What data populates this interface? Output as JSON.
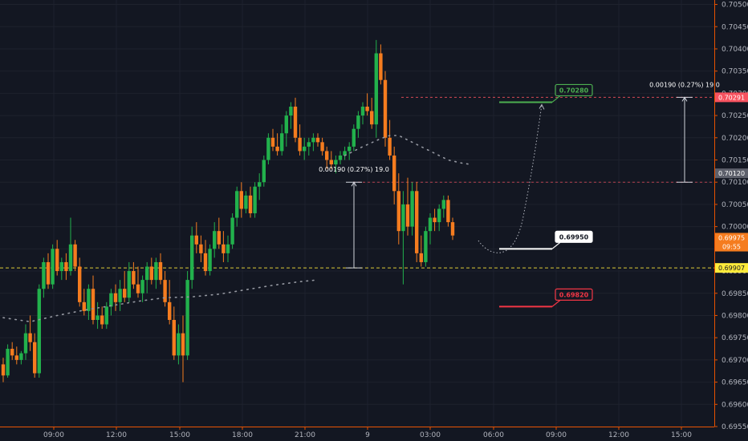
{
  "chart_data": {
    "type": "candlestick",
    "title": "",
    "xlabel": "",
    "ylabel": "",
    "ylim": [
      0.6955,
      0.7051
    ],
    "y_ticks": [
      "0.70500",
      "0.70450",
      "0.70400",
      "0.70350",
      "0.70300",
      "0.70250",
      "0.70200",
      "0.70150",
      "0.70100",
      "0.70050",
      "0.70000",
      "0.69950",
      "0.69900",
      "0.69850",
      "0.69800",
      "0.69750",
      "0.69700",
      "0.69650",
      "0.69600",
      "0.69550"
    ],
    "x_ticks": [
      "09:00",
      "12:00",
      "15:00",
      "18:00",
      "21:00",
      "9",
      "03:00",
      "06:00",
      "09:00",
      "12:00",
      "15:00"
    ],
    "grid": true,
    "colors": {
      "up": "#26a69a",
      "up_body": "#22b14c",
      "down": "#f57c1f",
      "background": "#131722",
      "grid": "#1e222d",
      "axis": "#e65100"
    },
    "candles": [
      [
        0.6969,
        0.69705,
        0.6965,
        0.69665
      ],
      [
        0.69665,
        0.69735,
        0.6966,
        0.69725
      ],
      [
        0.69725,
        0.6974,
        0.697,
        0.6971
      ],
      [
        0.6971,
        0.6973,
        0.6969,
        0.697
      ],
      [
        0.697,
        0.6972,
        0.6969,
        0.69715
      ],
      [
        0.69715,
        0.6978,
        0.697,
        0.6976
      ],
      [
        0.6976,
        0.698,
        0.6972,
        0.6974
      ],
      [
        0.6974,
        0.6976,
        0.6966,
        0.6967
      ],
      [
        0.6967,
        0.6987,
        0.6966,
        0.6986
      ],
      [
        0.6986,
        0.6993,
        0.6984,
        0.6992
      ],
      [
        0.6992,
        0.6994,
        0.6986,
        0.6987
      ],
      [
        0.6987,
        0.6996,
        0.6986,
        0.6995
      ],
      [
        0.6995,
        0.6997,
        0.6989,
        0.699
      ],
      [
        0.699,
        0.6993,
        0.6988,
        0.6992
      ],
      [
        0.6992,
        0.6994,
        0.6988,
        0.699
      ],
      [
        0.699,
        0.7002,
        0.6989,
        0.6996
      ],
      [
        0.6996,
        0.6997,
        0.699,
        0.6991
      ],
      [
        0.6991,
        0.6993,
        0.6982,
        0.6983
      ],
      [
        0.6983,
        0.6986,
        0.698,
        0.6981
      ],
      [
        0.6981,
        0.6987,
        0.6979,
        0.6986
      ],
      [
        0.6986,
        0.6989,
        0.6978,
        0.6979
      ],
      [
        0.6979,
        0.6983,
        0.6977,
        0.698
      ],
      [
        0.698,
        0.6982,
        0.6977,
        0.6978
      ],
      [
        0.6978,
        0.6983,
        0.6977,
        0.6982
      ],
      [
        0.6982,
        0.6986,
        0.698,
        0.6985
      ],
      [
        0.6985,
        0.6987,
        0.6981,
        0.6983
      ],
      [
        0.6983,
        0.6988,
        0.6981,
        0.6986
      ],
      [
        0.6986,
        0.699,
        0.6983,
        0.6984
      ],
      [
        0.6984,
        0.6992,
        0.6983,
        0.699
      ],
      [
        0.699,
        0.6992,
        0.6986,
        0.6987
      ],
      [
        0.6987,
        0.6991,
        0.6984,
        0.6985
      ],
      [
        0.6985,
        0.6989,
        0.6983,
        0.6988
      ],
      [
        0.6988,
        0.6992,
        0.6985,
        0.6991
      ],
      [
        0.6991,
        0.6993,
        0.6987,
        0.6988
      ],
      [
        0.6988,
        0.6993,
        0.6986,
        0.6992
      ],
      [
        0.6992,
        0.6994,
        0.6987,
        0.6988
      ],
      [
        0.6988,
        0.699,
        0.6982,
        0.6983
      ],
      [
        0.6983,
        0.6988,
        0.6978,
        0.6979
      ],
      [
        0.6979,
        0.6982,
        0.697,
        0.6971
      ],
      [
        0.6971,
        0.6978,
        0.6969,
        0.6976
      ],
      [
        0.6976,
        0.698,
        0.6965,
        0.6971
      ],
      [
        0.6971,
        0.699,
        0.697,
        0.6988
      ],
      [
        0.6988,
        0.7,
        0.6986,
        0.6998
      ],
      [
        0.6998,
        0.7001,
        0.6994,
        0.6996
      ],
      [
        0.6996,
        0.6998,
        0.6992,
        0.6994
      ],
      [
        0.6994,
        0.6997,
        0.6989,
        0.699
      ],
      [
        0.699,
        0.6996,
        0.6989,
        0.6995
      ],
      [
        0.6995,
        0.7001,
        0.6993,
        0.6999
      ],
      [
        0.6999,
        0.7002,
        0.6995,
        0.6996
      ],
      [
        0.6996,
        0.6999,
        0.6992,
        0.6994
      ],
      [
        0.6994,
        0.6998,
        0.6992,
        0.6996
      ],
      [
        0.6996,
        0.7003,
        0.6995,
        0.7002
      ],
      [
        0.7002,
        0.7009,
        0.7,
        0.7008
      ],
      [
        0.7008,
        0.701,
        0.7002,
        0.7004
      ],
      [
        0.7004,
        0.7008,
        0.7003,
        0.7007
      ],
      [
        0.7007,
        0.7009,
        0.7002,
        0.7003
      ],
      [
        0.7003,
        0.701,
        0.7002,
        0.7009
      ],
      [
        0.7009,
        0.7012,
        0.7006,
        0.701
      ],
      [
        0.701,
        0.7016,
        0.7009,
        0.7015
      ],
      [
        0.7015,
        0.7021,
        0.7014,
        0.702
      ],
      [
        0.702,
        0.7022,
        0.7017,
        0.7018
      ],
      [
        0.7018,
        0.7021,
        0.7016,
        0.7017
      ],
      [
        0.7017,
        0.7023,
        0.7016,
        0.7021
      ],
      [
        0.7021,
        0.7026,
        0.7018,
        0.7025
      ],
      [
        0.7025,
        0.7028,
        0.7022,
        0.7027
      ],
      [
        0.7027,
        0.7029,
        0.7019,
        0.702
      ],
      [
        0.702,
        0.7023,
        0.7016,
        0.7017
      ],
      [
        0.7017,
        0.702,
        0.7015,
        0.7018
      ],
      [
        0.7018,
        0.702,
        0.7016,
        0.7019
      ],
      [
        0.7019,
        0.7021,
        0.7017,
        0.702
      ],
      [
        0.702,
        0.7021,
        0.7018,
        0.7019
      ],
      [
        0.7019,
        0.702,
        0.7016,
        0.7017
      ],
      [
        0.7017,
        0.7018,
        0.7013,
        0.7015
      ],
      [
        0.7015,
        0.7017,
        0.7013,
        0.7014
      ],
      [
        0.7014,
        0.7016,
        0.7012,
        0.7015
      ],
      [
        0.7015,
        0.7017,
        0.7014,
        0.7016
      ],
      [
        0.7016,
        0.7018,
        0.7015,
        0.7017
      ],
      [
        0.7017,
        0.7019,
        0.7015,
        0.7018
      ],
      [
        0.7018,
        0.7023,
        0.7017,
        0.7022
      ],
      [
        0.7022,
        0.7026,
        0.702,
        0.7025
      ],
      [
        0.7025,
        0.7028,
        0.7023,
        0.7027
      ],
      [
        0.7027,
        0.703,
        0.7025,
        0.7026
      ],
      [
        0.7026,
        0.7029,
        0.7022,
        0.7023
      ],
      [
        0.7023,
        0.7042,
        0.702,
        0.7039
      ],
      [
        0.7039,
        0.7041,
        0.7032,
        0.7033
      ],
      [
        0.7033,
        0.7035,
        0.7018,
        0.702
      ],
      [
        0.702,
        0.7024,
        0.7015,
        0.7016
      ],
      [
        0.7016,
        0.7018,
        0.7005,
        0.7008
      ],
      [
        0.7008,
        0.7012,
        0.6996,
        0.6999
      ],
      [
        0.6999,
        0.7008,
        0.6987,
        0.7005
      ],
      [
        0.7005,
        0.7011,
        0.6998,
        0.7
      ],
      [
        0.7,
        0.701,
        0.6998,
        0.7008
      ],
      [
        0.7008,
        0.701,
        0.6992,
        0.6994
      ],
      [
        0.6994,
        0.6998,
        0.6991,
        0.6992
      ],
      [
        0.6992,
        0.7,
        0.6991,
        0.6999
      ],
      [
        0.6999,
        0.7003,
        0.6996,
        0.7002
      ],
      [
        0.7002,
        0.7004,
        0.6999,
        0.7001
      ],
      [
        0.7001,
        0.7005,
        0.6999,
        0.7004
      ],
      [
        0.7004,
        0.7007,
        0.7002,
        0.7006
      ],
      [
        0.7006,
        0.7007,
        0.7,
        0.7001
      ],
      [
        0.7001,
        0.7002,
        0.6997,
        0.6998
      ]
    ],
    "series": [
      {
        "name": "",
        "style": "dotted",
        "color": "#9598a1",
        "points": [
          [
            0,
            0.69795
          ],
          [
            6,
            0.69786
          ],
          [
            12,
            0.698
          ],
          [
            18,
            0.69812
          ],
          [
            24,
            0.69822
          ],
          [
            30,
            0.69832
          ],
          [
            36,
            0.6984
          ],
          [
            42,
            0.69842
          ],
          [
            48,
            0.69848
          ],
          [
            54,
            0.69858
          ],
          [
            60,
            0.69868
          ],
          [
            66,
            0.69876
          ],
          [
            70,
            0.6988
          ]
        ]
      },
      {
        "name": "",
        "style": "dotted",
        "color": "#9598a1",
        "points": [
          [
            76,
            0.7016
          ],
          [
            80,
            0.7018
          ],
          [
            84,
            0.70198
          ],
          [
            86,
            0.70205
          ],
          [
            88,
            0.70205
          ],
          [
            90,
            0.70195
          ],
          [
            93,
            0.7018
          ],
          [
            96,
            0.70165
          ],
          [
            99,
            0.7015
          ],
          [
            102,
            0.70143
          ],
          [
            104,
            0.7014
          ]
        ]
      }
    ],
    "levels": [
      {
        "label": "0.70291",
        "value": 0.70291,
        "color": "#f7525f",
        "style": "dashed"
      },
      {
        "label": "0.70120",
        "value": 0.7012,
        "color": "#787b86",
        "style": "none"
      },
      {
        "label": "0.69975",
        "value": 0.69975,
        "color": "#f57c1f",
        "style": "none"
      },
      {
        "label": "09:55",
        "value": 0.69955,
        "color": "#f57c1f",
        "style": "none"
      },
      {
        "label": "0.69907",
        "value": 0.69907,
        "color": "#ffeb3b",
        "style": "dashed"
      }
    ],
    "resistance_line": 0.701,
    "targets": [
      {
        "label": "0.70280",
        "value": 0.7028,
        "color": "#4caf50"
      },
      {
        "label": "0.69950",
        "value": 0.6995,
        "color": "#ffffff"
      },
      {
        "label": "0.69820",
        "value": 0.6982,
        "color": "#f23645"
      }
    ],
    "measures": [
      {
        "label": "0.00190 (0.27%) 19.0",
        "from": 0.69907,
        "to": 0.701
      },
      {
        "label": "0.00190 (0.27%) 19.0",
        "from": 0.701,
        "to": 0.70291
      }
    ]
  }
}
